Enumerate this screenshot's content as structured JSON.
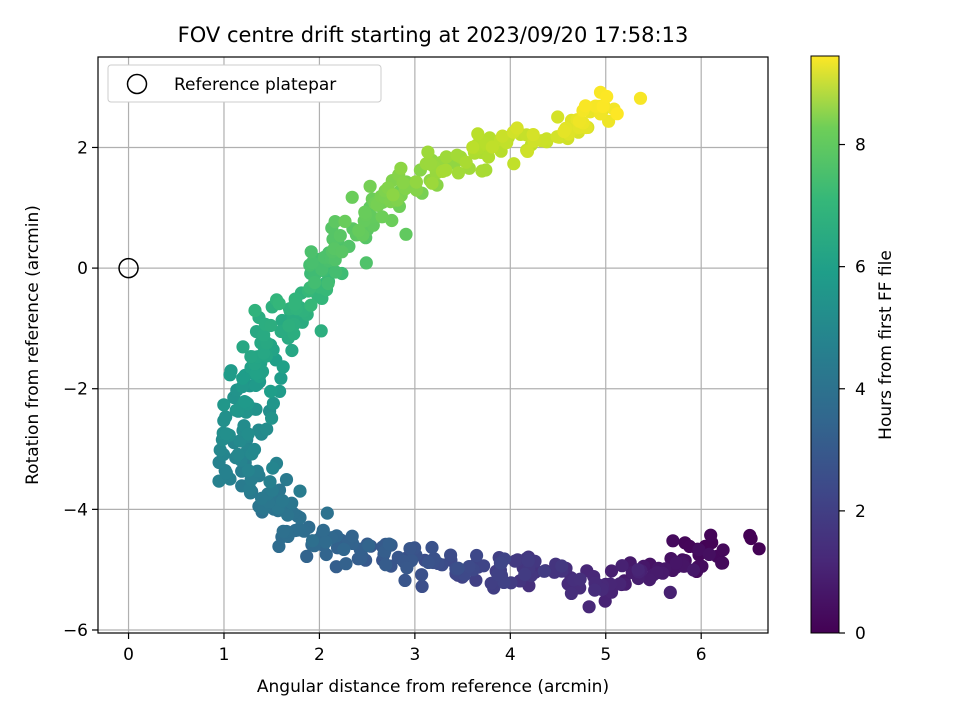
{
  "chart_data": {
    "type": "scatter",
    "title": "FOV centre drift starting at 2023/09/20 17:58:13",
    "xlabel": "Angular distance from reference (arcmin)",
    "ylabel": "Rotation from reference (arcmin)",
    "xlim": [
      -0.32,
      6.7
    ],
    "ylim": [
      -6.05,
      3.5
    ],
    "xticks": [
      0,
      1,
      2,
      3,
      4,
      5,
      6
    ],
    "yticks": [
      -6,
      -4,
      -2,
      0,
      2
    ],
    "xtick_labels": [
      "0",
      "1",
      "2",
      "3",
      "4",
      "5",
      "6"
    ],
    "ytick_labels": [
      "−6",
      "−4",
      "−2",
      "0",
      "2"
    ],
    "grid": true,
    "legend": {
      "placement": "top-left",
      "entries": [
        "Reference platepar"
      ]
    },
    "reference_point": {
      "x": 0,
      "y": 0
    },
    "colorbar": {
      "label": "Hours from first FF file",
      "colormap": "viridis",
      "range": [
        0,
        9.45
      ],
      "ticks": [
        0,
        2,
        4,
        6,
        8
      ],
      "tick_labels": [
        "0",
        "2",
        "4",
        "6",
        "8"
      ]
    },
    "path_anchors": [
      [
        6.3,
        -4.6
      ],
      [
        5.9,
        -4.8
      ],
      [
        5.3,
        -5.15
      ],
      [
        4.9,
        -5.25
      ],
      [
        4.4,
        -5.0
      ],
      [
        3.7,
        -5.05
      ],
      [
        3.0,
        -4.85
      ],
      [
        2.3,
        -4.7
      ],
      [
        1.8,
        -4.35
      ],
      [
        1.45,
        -3.9
      ],
      [
        1.15,
        -3.2
      ],
      [
        1.2,
        -2.4
      ],
      [
        1.4,
        -1.6
      ],
      [
        1.7,
        -0.8
      ],
      [
        2.05,
        -0.1
      ],
      [
        2.35,
        0.65
      ],
      [
        2.8,
        1.2
      ],
      [
        3.25,
        1.65
      ],
      [
        3.8,
        1.95
      ],
      [
        4.3,
        2.2
      ],
      [
        4.8,
        2.45
      ],
      [
        5.05,
        2.8
      ]
    ],
    "n_points": 520,
    "jitter_arcmin": 0.22,
    "seed": 7
  },
  "colors": {
    "grid": "#b0b0b0",
    "axes": "#000000",
    "legend_border": "#cccccc"
  }
}
